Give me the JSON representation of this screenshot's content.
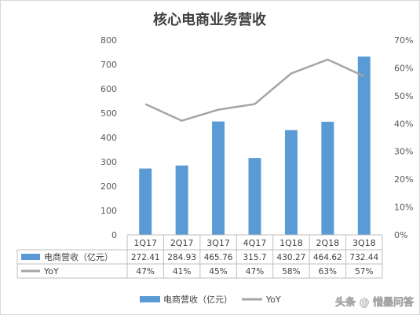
{
  "chart_data": {
    "type": "bar",
    "title": "核心电商业务营收",
    "categories": [
      "1Q17",
      "2Q17",
      "3Q17",
      "4Q17",
      "1Q18",
      "2Q18",
      "3Q18"
    ],
    "series": [
      {
        "name": "电商营收（亿元）",
        "type": "bar",
        "axis": "left",
        "color": "#5b9bd5",
        "values": [
          272.41,
          284.93,
          465.76,
          315.7,
          430.27,
          464.62,
          732.44
        ],
        "labels": [
          "272.41",
          "284.93",
          "465.76",
          "315.7",
          "430.27",
          "464.62",
          "732.44"
        ]
      },
      {
        "name": "YoY",
        "type": "line",
        "axis": "right",
        "color": "#a5a5a5",
        "values": [
          47,
          41,
          45,
          47,
          58,
          63,
          57
        ],
        "labels": [
          "47%",
          "41%",
          "45%",
          "47%",
          "58%",
          "63%",
          "57%"
        ]
      }
    ],
    "y_left": {
      "range": [
        0,
        800
      ],
      "ticks": [
        "0",
        "100",
        "200",
        "300",
        "400",
        "500",
        "600",
        "700",
        "800"
      ]
    },
    "y_right": {
      "range": [
        0,
        70
      ],
      "ticks": [
        "0%",
        "10%",
        "20%",
        "30%",
        "40%",
        "50%",
        "60%",
        "70%"
      ]
    },
    "legend_position": "bottom",
    "data_table": true,
    "grid": false
  },
  "watermark": "头条 @ 惜墨问答"
}
